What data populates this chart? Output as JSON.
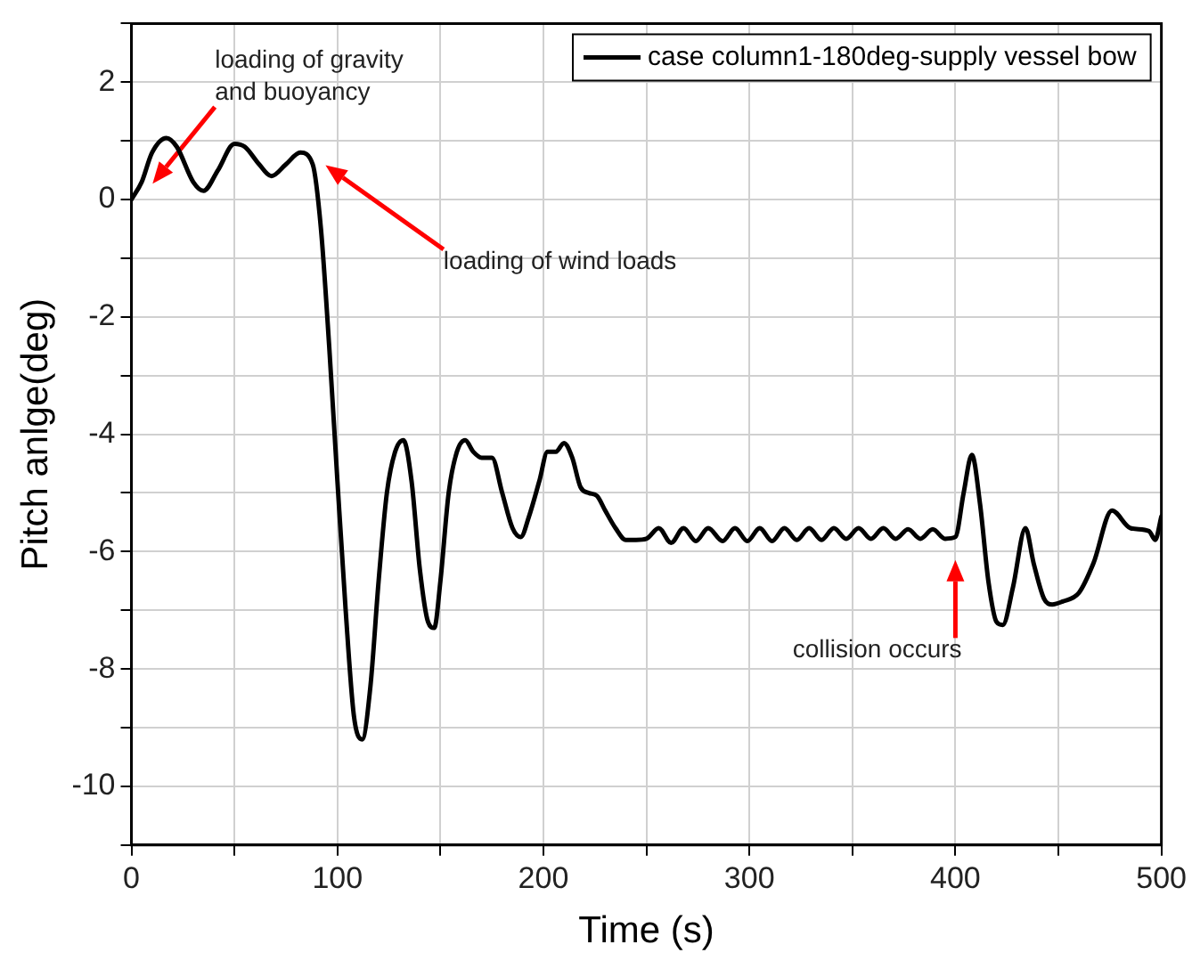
{
  "chart_data": {
    "type": "line",
    "xlabel": "Time (s)",
    "ylabel": "Pitch anlge(deg)",
    "xlim": [
      0,
      500
    ],
    "ylim": [
      -11,
      3
    ],
    "xticks": [
      0,
      {
        "value": 50,
        "label": null
      },
      100,
      {
        "value": 150,
        "label": null
      },
      200,
      {
        "value": 250,
        "label": null
      },
      300,
      {
        "value": 350,
        "label": null
      },
      400,
      {
        "value": 450,
        "label": null
      },
      500
    ],
    "yticks": [
      {
        "value": -11,
        "label": null
      },
      -10,
      {
        "value": -9,
        "label": null
      },
      -8,
      {
        "value": -7,
        "label": null
      },
      -6,
      {
        "value": -5,
        "label": null
      },
      -4,
      {
        "value": -3,
        "label": null
      },
      -2,
      {
        "value": -1,
        "label": null
      },
      0,
      {
        "value": 1,
        "label": null
      },
      2,
      {
        "value": 3,
        "label": null
      }
    ],
    "grid": true,
    "legend": "top right",
    "marker": "none",
    "line_style": "solid",
    "series": [
      {
        "name": "case column1-180deg-supply vessel bow",
        "color": "#000000",
        "x": [
          0,
          5,
          10,
          17,
          22,
          30,
          35,
          42,
          50,
          55,
          62,
          68,
          75,
          82,
          88,
          92,
          96,
          100,
          104,
          108,
          112,
          116,
          120,
          124,
          128,
          132,
          136,
          140,
          144,
          147,
          150,
          154,
          158,
          162,
          166,
          170,
          175,
          180,
          185,
          189,
          193,
          198,
          202,
          206,
          210,
          214,
          218,
          222,
          226,
          230,
          235,
          240,
          245,
          250,
          256,
          262,
          268,
          274,
          280,
          287,
          293,
          299,
          305,
          311,
          317,
          323,
          329,
          335,
          341,
          347,
          353,
          359,
          365,
          371,
          377,
          383,
          389,
          395,
          400,
          404,
          408,
          412,
          416,
          420,
          423,
          428,
          434,
          438,
          443,
          447,
          452,
          460,
          467,
          476,
          485,
          494,
          497,
          500
        ],
        "values": [
          0,
          0.3,
          0.8,
          1.05,
          0.9,
          0.3,
          0.15,
          0.5,
          0.95,
          0.9,
          0.6,
          0.4,
          0.6,
          0.8,
          0.6,
          -0.5,
          -2.5,
          -4.8,
          -7,
          -8.8,
          -9.2,
          -8.3,
          -6.5,
          -5,
          -4.3,
          -4.1,
          -4.8,
          -6.3,
          -7.2,
          -7.3,
          -6.5,
          -5,
          -4.3,
          -4.1,
          -4.3,
          -4.4,
          -4.4,
          -5,
          -5.6,
          -5.75,
          -5.4,
          -4.8,
          -4.3,
          -4.3,
          -4.15,
          -4.4,
          -4.9,
          -5,
          -5.05,
          -5.3,
          -5.6,
          -5.8,
          -5.8,
          -5.78,
          -5.6,
          -5.85,
          -5.6,
          -5.82,
          -5.6,
          -5.82,
          -5.6,
          -5.82,
          -5.6,
          -5.82,
          -5.6,
          -5.8,
          -5.6,
          -5.8,
          -5.6,
          -5.78,
          -5.6,
          -5.78,
          -5.6,
          -5.78,
          -5.62,
          -5.78,
          -5.62,
          -5.78,
          -5.75,
          -5,
          -4.35,
          -5.2,
          -6.5,
          -7.2,
          -7.25,
          -6.6,
          -5.6,
          -6.2,
          -6.8,
          -6.9,
          -6.85,
          -6.7,
          -6.2,
          -5.3,
          -5.6,
          -5.65,
          -5.8,
          -5.4
        ]
      }
    ],
    "annotations": [
      "loading of gravity and buoyancy",
      "loading of wind loads",
      "collision occurs"
    ]
  }
}
